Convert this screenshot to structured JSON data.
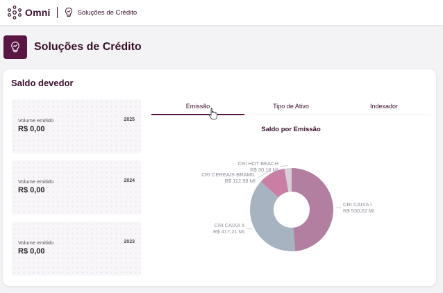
{
  "header": {
    "brand": "Omni",
    "breadcrumb": "Soluções de Crédito"
  },
  "page": {
    "title": "Soluções de Crédito"
  },
  "card": {
    "title": "Saldo devedor",
    "volumes": [
      {
        "label": "Volume emitido",
        "year": "2025",
        "value": "R$ 0,00"
      },
      {
        "label": "Volume emitido",
        "year": "2024",
        "value": "R$ 0,00"
      },
      {
        "label": "Volume emitido",
        "year": "2023",
        "value": "R$ 0,00"
      }
    ],
    "tabs": [
      {
        "label": "Emissão",
        "active": true
      },
      {
        "label": "Tipo de Ativo",
        "active": false
      },
      {
        "label": "Indexador",
        "active": false
      }
    ]
  },
  "colors": {
    "brand": "#5a1642",
    "series": [
      "#b27fa0",
      "#a7b3c1",
      "#c97fa4",
      "#d9cfd6",
      "#a5abb6"
    ]
  },
  "chart_data": {
    "type": "pie",
    "title": "Saldo por Emissão",
    "unit": "R$ MI",
    "series": [
      {
        "name": "CRI CAIXA I",
        "value": 530.22,
        "value_label": "R$ 530,22 MI"
      },
      {
        "name": "CRI CAIXA II",
        "value": 417.21,
        "value_label": "R$ 417,21 MI"
      },
      {
        "name": "CRI CEREAIS BRAMIL",
        "value": 112.98,
        "value_label": "R$ 112,98 MI"
      },
      {
        "name": "CRI HOT BEACH",
        "value": 30.18,
        "value_label": "R$ 30,18 MI"
      }
    ],
    "legend": "labels-outside"
  }
}
